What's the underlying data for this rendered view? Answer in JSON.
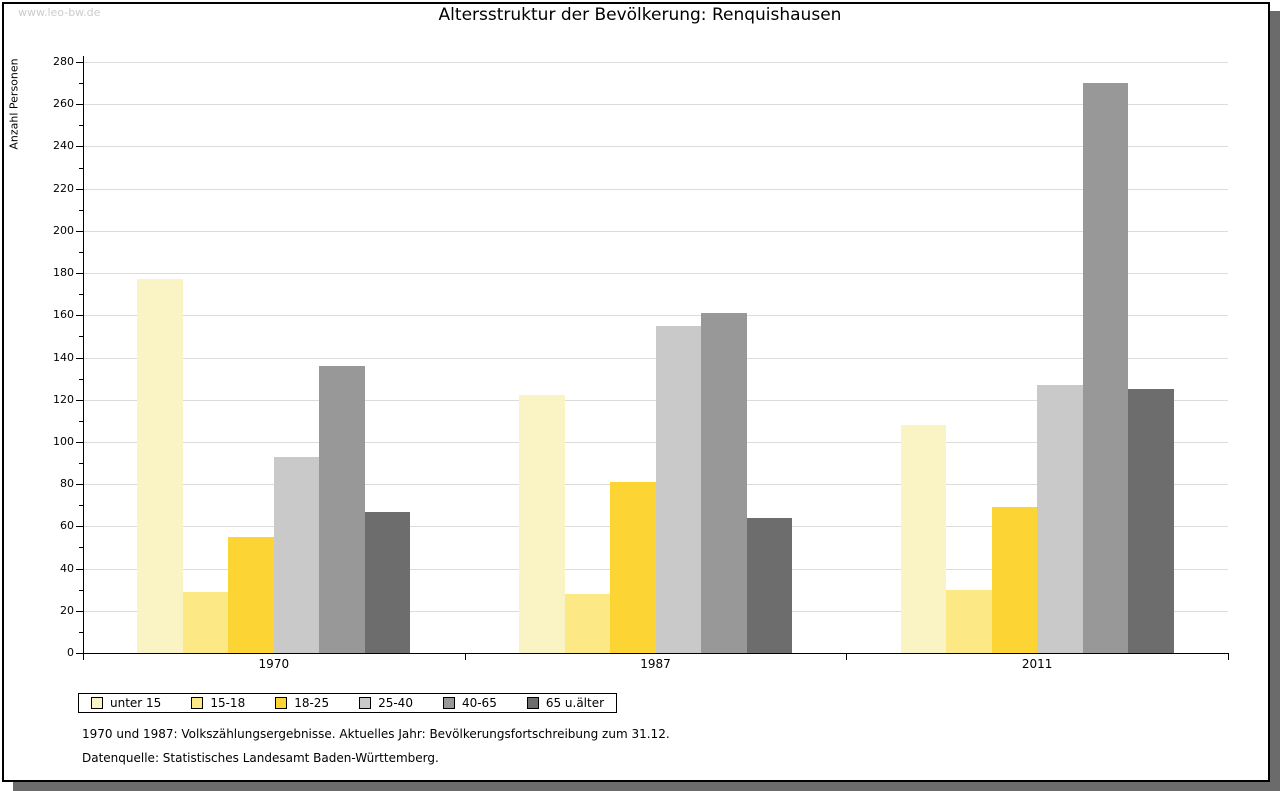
{
  "watermark": "www.leo-bw.de",
  "title": "Altersstruktur der Bevölkerung: Renquishausen",
  "footnotes": {
    "line1": "1970 und 1987: Volkszählungsergebnisse. Aktuelles Jahr: Bevölkerungsfortschreibung zum 31.12.",
    "line2": "Datenquelle: Statistisches Landesamt Baden-Württemberg."
  },
  "frame": {
    "border_color": "#000000",
    "shadow_color": "#6B6B6B",
    "background": "#FFFFFF"
  },
  "chart_data": {
    "type": "bar",
    "title": "Altersstruktur der Bevölkerung: Renquishausen",
    "categories": [
      "1970",
      "1987",
      "2011"
    ],
    "series": [
      {
        "name": "unter 15",
        "color": "#FAF3C3",
        "values": [
          177,
          122,
          108
        ]
      },
      {
        "name": "15-18",
        "color": "#FCE884",
        "values": [
          29,
          28,
          30
        ]
      },
      {
        "name": "18-25",
        "color": "#FCD535",
        "values": [
          55,
          81,
          69
        ]
      },
      {
        "name": "25-40",
        "color": "#C9C9C9",
        "values": [
          93,
          155,
          127
        ]
      },
      {
        "name": "40-65",
        "color": "#989898",
        "values": [
          136,
          161,
          270
        ]
      },
      {
        "name": "65 u.älter",
        "color": "#6D6D6D",
        "values": [
          67,
          64,
          125
        ]
      }
    ],
    "xlabel": "",
    "ylabel": "Anzahl Personen",
    "ylim": [
      0,
      280
    ],
    "ytick_step": 20,
    "y_minor_tick_step": 10,
    "grid": true,
    "gridline_color": "#DCDCDC",
    "legend_position": "bottom-left"
  }
}
